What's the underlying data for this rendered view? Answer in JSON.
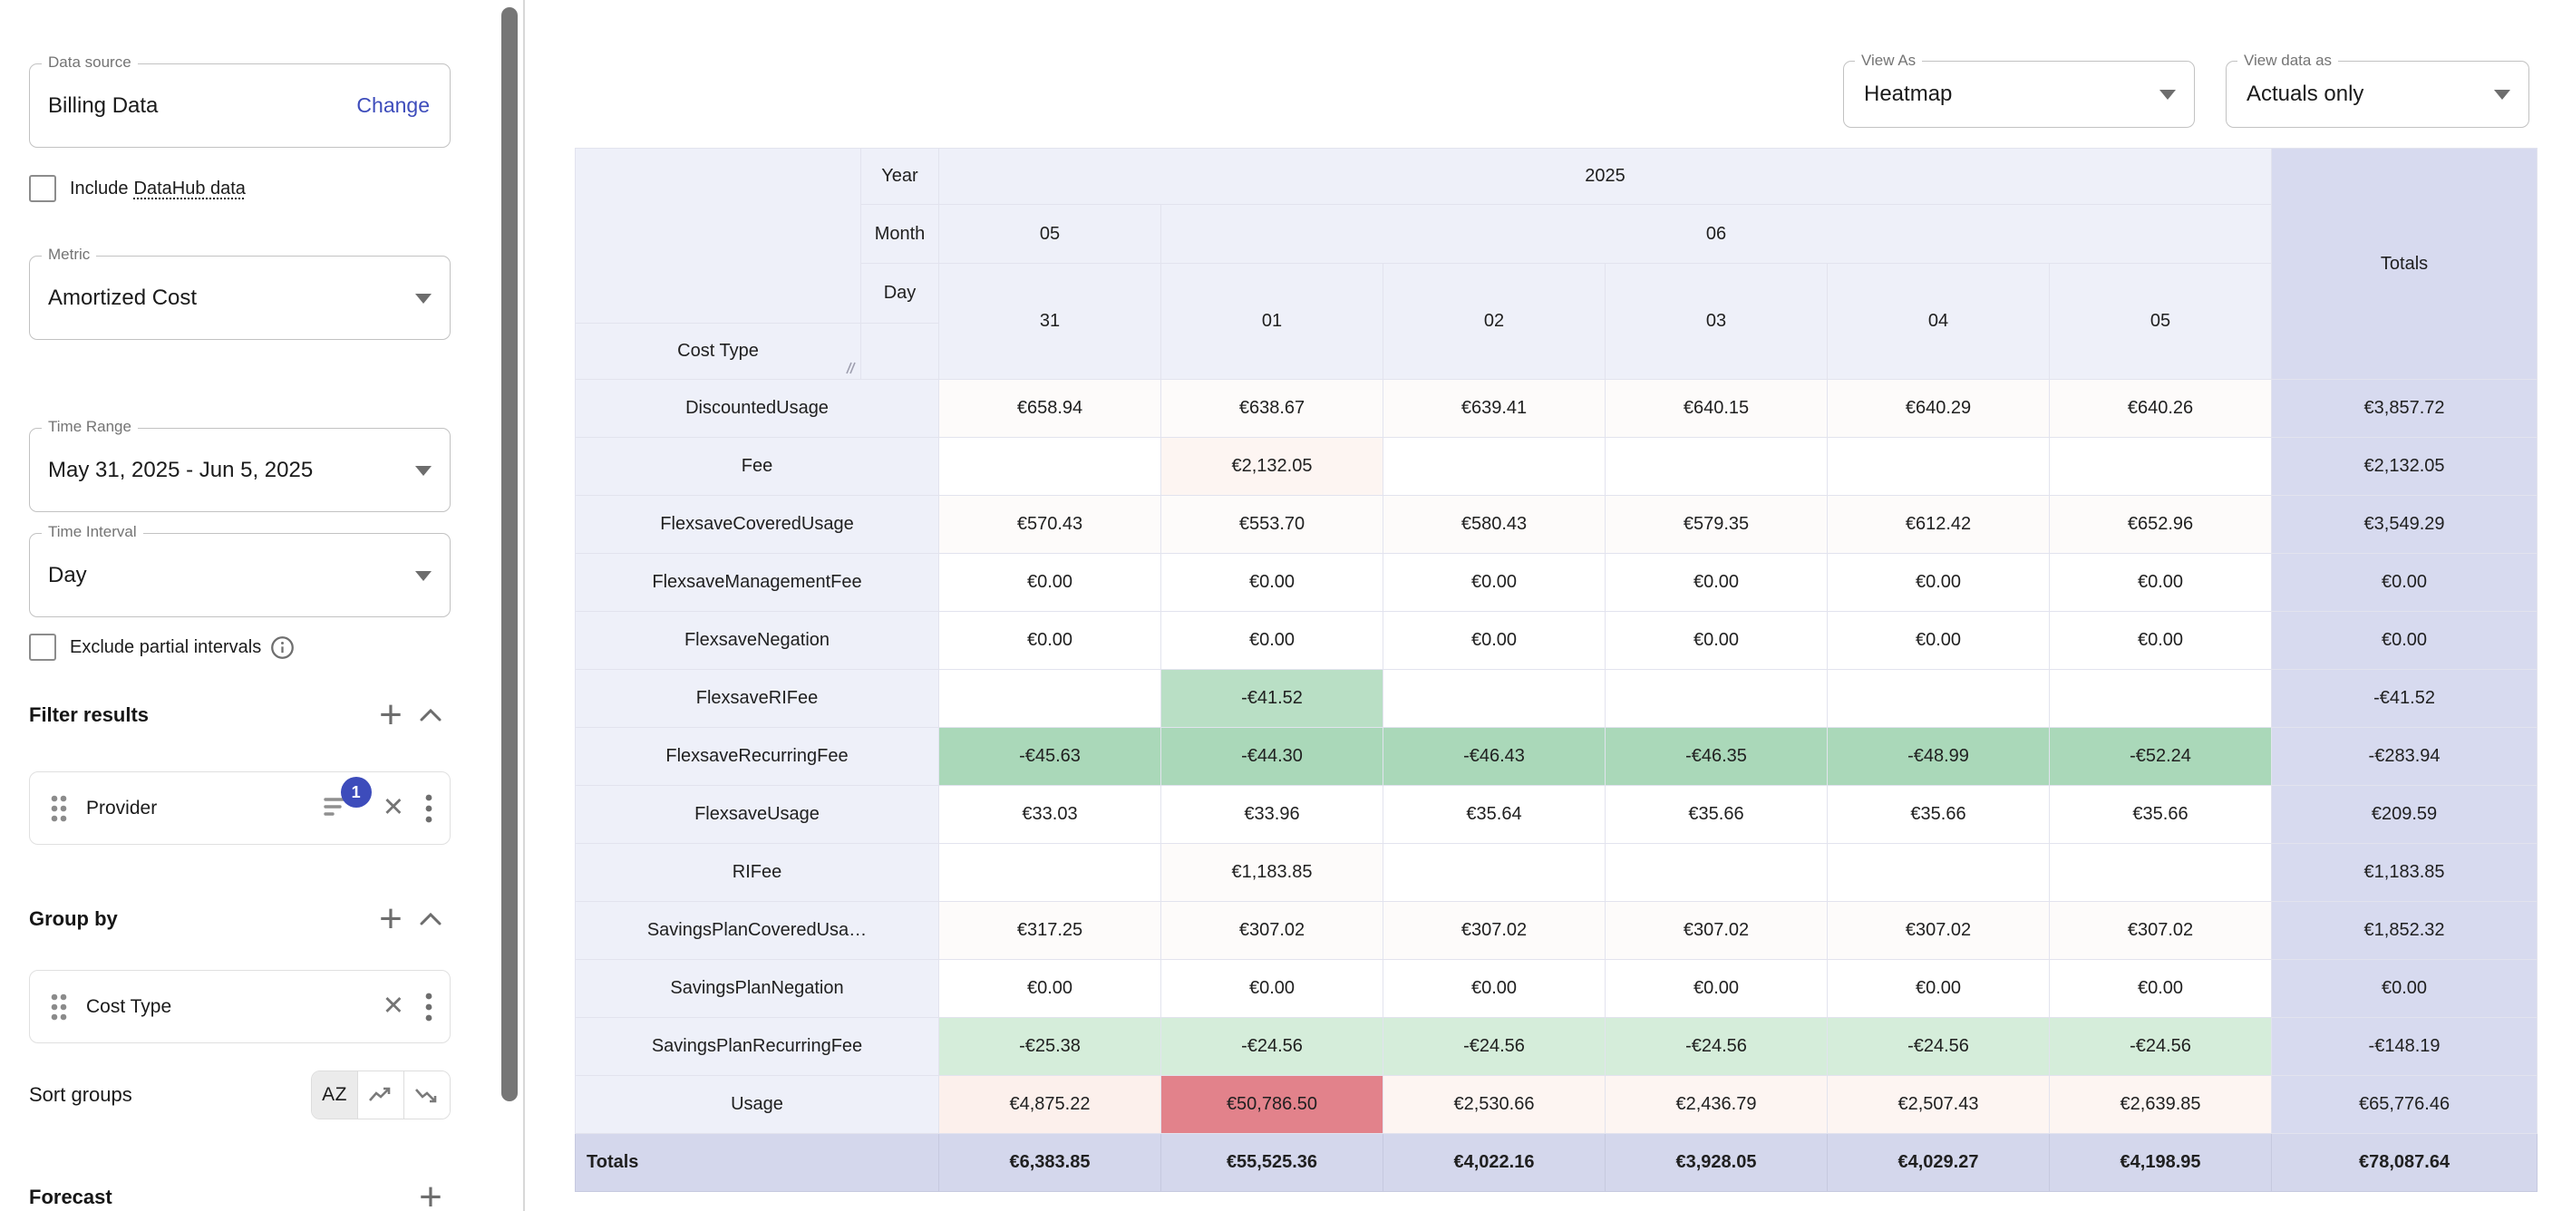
{
  "palette": {
    "accent": "#3d4cbb",
    "header_bg": "#eef0f9",
    "totals_col_bg": "#d7daef",
    "totals_row_bg": "#d4d7ec",
    "green_mid": "#aad8b9",
    "green_soft": "#b9dfc5",
    "green_light": "#d5edda",
    "red_strong": "#e2828b",
    "pink_strong": "#fcf0ec",
    "pink_mid": "#fdf5f2",
    "pink_faint": "#fdfbfa",
    "white": "#ffffff"
  },
  "icons": {
    "dropdown": "caret-down",
    "close": "✕",
    "kebab": "three-dots-vertical",
    "plus": "+",
    "chevron_up": "chevron-up",
    "info": "info-circle",
    "drag_handle": "six-dots",
    "filter": "filter-lines",
    "sort_alpha": "AZ",
    "trend_up": "zigzag-up",
    "trend_down": "zigzag-down",
    "resize": "diagonal-lines"
  },
  "sidebar": {
    "data_source": {
      "label": "Data source",
      "value": "Billing Data",
      "action": "Change"
    },
    "include_datahub": {
      "label_prefix": "Include",
      "label_link": "DataHub data",
      "checked": false
    },
    "metric": {
      "label": "Metric",
      "value": "Amortized Cost"
    },
    "time_range": {
      "label": "Time Range",
      "value": "May 31, 2025 - Jun 5, 2025"
    },
    "time_interval": {
      "label": "Time Interval",
      "value": "Day"
    },
    "exclude_partial": {
      "label": "Exclude partial intervals",
      "checked": false
    },
    "filter_results": {
      "title": "Filter results",
      "chips": [
        {
          "label": "Provider",
          "badge": "1"
        }
      ]
    },
    "group_by": {
      "title": "Group by",
      "chips": [
        {
          "label": "Cost Type"
        }
      ]
    },
    "sort_groups": {
      "label": "Sort groups",
      "options": [
        "alphabetical",
        "trend-up",
        "trend-down"
      ],
      "selected": "alphabetical"
    },
    "forecast": {
      "title": "Forecast"
    }
  },
  "toolbar": {
    "view_as": {
      "label": "View As",
      "value": "Heatmap"
    },
    "view_data_as": {
      "label": "View data as",
      "value": "Actuals only"
    }
  },
  "table": {
    "corner_label": "Cost Type",
    "axis_labels": {
      "year": "Year",
      "month": "Month",
      "day": "Day"
    },
    "year": "2025",
    "months": [
      {
        "label": "05",
        "span": 1
      },
      {
        "label": "06",
        "span": 5
      }
    ],
    "days": [
      "31",
      "01",
      "02",
      "03",
      "04",
      "05"
    ],
    "totals_label": "Totals",
    "rows": [
      {
        "label": "DiscountedUsage",
        "values": [
          "€658.94",
          "€638.67",
          "€639.41",
          "€640.15",
          "€640.29",
          "€640.26"
        ],
        "bg": [
          "pink_faint",
          "pink_faint",
          "pink_faint",
          "pink_faint",
          "pink_faint",
          "pink_faint"
        ],
        "total": "€3,857.72"
      },
      {
        "label": "Fee",
        "values": [
          "",
          "€2,132.05",
          "",
          "",
          "",
          ""
        ],
        "bg": [
          "",
          "pink_mid",
          "",
          "",
          "",
          ""
        ],
        "total": "€2,132.05"
      },
      {
        "label": "FlexsaveCoveredUsage",
        "values": [
          "€570.43",
          "€553.70",
          "€580.43",
          "€579.35",
          "€612.42",
          "€652.96"
        ],
        "bg": [
          "pink_faint",
          "pink_faint",
          "pink_faint",
          "pink_faint",
          "pink_faint",
          "pink_faint"
        ],
        "total": "€3,549.29"
      },
      {
        "label": "FlexsaveManagementFee",
        "values": [
          "€0.00",
          "€0.00",
          "€0.00",
          "€0.00",
          "€0.00",
          "€0.00"
        ],
        "bg": [
          "",
          "",
          "",
          "",
          "",
          ""
        ],
        "total": "€0.00"
      },
      {
        "label": "FlexsaveNegation",
        "values": [
          "€0.00",
          "€0.00",
          "€0.00",
          "€0.00",
          "€0.00",
          "€0.00"
        ],
        "bg": [
          "",
          "",
          "",
          "",
          "",
          ""
        ],
        "total": "€0.00"
      },
      {
        "label": "FlexsaveRIFee",
        "values": [
          "",
          "-€41.52",
          "",
          "",
          "",
          ""
        ],
        "bg": [
          "",
          "green_soft",
          "",
          "",
          "",
          ""
        ],
        "total": "-€41.52"
      },
      {
        "label": "FlexsaveRecurringFee",
        "values": [
          "-€45.63",
          "-€44.30",
          "-€46.43",
          "-€46.35",
          "-€48.99",
          "-€52.24"
        ],
        "bg": [
          "green_mid",
          "green_mid",
          "green_mid",
          "green_mid",
          "green_mid",
          "green_mid"
        ],
        "total": "-€283.94"
      },
      {
        "label": "FlexsaveUsage",
        "values": [
          "€33.03",
          "€33.96",
          "€35.64",
          "€35.66",
          "€35.66",
          "€35.66"
        ],
        "bg": [
          "",
          "",
          "",
          "",
          "",
          ""
        ],
        "total": "€209.59"
      },
      {
        "label": "RIFee",
        "values": [
          "",
          "€1,183.85",
          "",
          "",
          "",
          ""
        ],
        "bg": [
          "",
          "pink_faint",
          "",
          "",
          "",
          ""
        ],
        "total": "€1,183.85"
      },
      {
        "label": "SavingsPlanCoveredUsa…",
        "values": [
          "€317.25",
          "€307.02",
          "€307.02",
          "€307.02",
          "€307.02",
          "€307.02"
        ],
        "bg": [
          "pink_faint",
          "pink_faint",
          "pink_faint",
          "pink_faint",
          "pink_faint",
          "pink_faint"
        ],
        "total": "€1,852.32"
      },
      {
        "label": "SavingsPlanNegation",
        "values": [
          "€0.00",
          "€0.00",
          "€0.00",
          "€0.00",
          "€0.00",
          "€0.00"
        ],
        "bg": [
          "",
          "",
          "",
          "",
          "",
          ""
        ],
        "total": "€0.00"
      },
      {
        "label": "SavingsPlanRecurringFee",
        "values": [
          "-€25.38",
          "-€24.56",
          "-€24.56",
          "-€24.56",
          "-€24.56",
          "-€24.56"
        ],
        "bg": [
          "green_light",
          "green_light",
          "green_light",
          "green_light",
          "green_light",
          "green_light"
        ],
        "total": "-€148.19"
      },
      {
        "label": "Usage",
        "values": [
          "€4,875.22",
          "€50,786.50",
          "€2,530.66",
          "€2,436.79",
          "€2,507.43",
          "€2,639.85"
        ],
        "bg": [
          "pink_strong",
          "red_strong",
          "pink_mid",
          "pink_mid",
          "pink_mid",
          "pink_mid"
        ],
        "total": "€65,776.46"
      }
    ],
    "totals_row": {
      "label": "Totals",
      "values": [
        "€6,383.85",
        "€55,525.36",
        "€4,022.16",
        "€3,928.05",
        "€4,029.27",
        "€4,198.95"
      ],
      "total": "€78,087.64"
    }
  }
}
